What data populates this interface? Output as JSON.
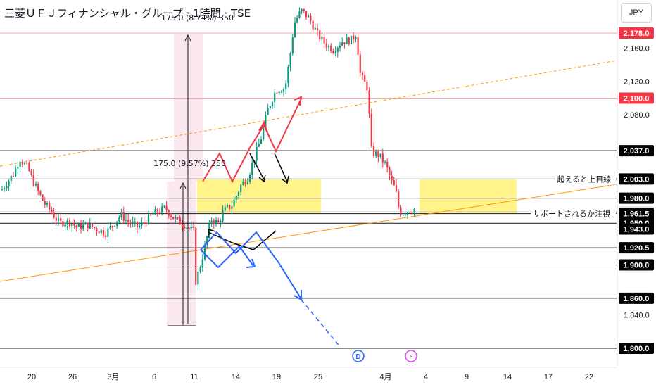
{
  "header": {
    "title": "三菱ＵＦＪフィナンシャル・グループ · 1時間 · TSE",
    "currency": "JPY"
  },
  "chart_data": {
    "type": "candlestick",
    "symbol": "三菱ＵＦＪフィナンシャル・グループ",
    "interval": "1時間",
    "exchange": "TSE",
    "currency": "JPY",
    "ylim": [
      1790,
      2205
    ],
    "y_ticks": [
      "2,160.0",
      "2,120.0",
      "2,080.0",
      "1,840.0"
    ],
    "x_ticks": [
      "20",
      "26",
      "3月",
      "6",
      "11",
      "14",
      "19",
      "25",
      "4月",
      "4",
      "9",
      "14",
      "17",
      "22"
    ],
    "horizontal_levels": [
      {
        "value": 2178.0,
        "label": "2,178.0",
        "color": "#f23645",
        "line": "#f7a8b0"
      },
      {
        "value": 2100.0,
        "label": "2,100.0",
        "color": "#f23645",
        "line": "#f7a8b0"
      },
      {
        "value": 2037.0,
        "label": "2,037.0",
        "color": "#000000",
        "line": "#131722"
      },
      {
        "value": 2003.0,
        "label": "2,003.0",
        "color": "#000000",
        "line": "#131722"
      },
      {
        "value": 1980.0,
        "label": "1,980.0",
        "color": "#000000",
        "line": "#131722"
      },
      {
        "value": 1963.5,
        "label": "1,963.5",
        "color": "#e0e3eb",
        "line": "#9598a1"
      },
      {
        "value": 1961.5,
        "label": "1,961.5",
        "color": "#000000",
        "line": "#131722"
      },
      {
        "value": 1950.0,
        "label": "1,950.0",
        "color": "#000000",
        "line": "#131722"
      },
      {
        "value": 1943.0,
        "label": "1,943.0",
        "color": "#000000",
        "line": "#131722"
      },
      {
        "value": 1920.5,
        "label": "1,920.5",
        "color": "#000000",
        "line": "#131722"
      },
      {
        "value": 1900.0,
        "label": "1,900.0",
        "color": "#000000",
        "line": "#131722"
      },
      {
        "value": 1860.0,
        "label": "1,860.0",
        "color": "#000000",
        "line": "#131722"
      },
      {
        "value": 1800.0,
        "label": "1,800.0",
        "color": "#000000",
        "line": "#131722"
      }
    ],
    "annotations": [
      {
        "text": "超えると上目線",
        "value": 2003.0
      },
      {
        "text": "サポートされるか注視",
        "value": 1961.5
      }
    ],
    "measure_labels": [
      "175.0 (9.57%) 350",
      "175.0 (8.74%) 350"
    ],
    "event_markers": [
      "D",
      "⚡"
    ],
    "colors": {
      "up": "#089981",
      "down": "#f23645",
      "bull_path": "#f23645",
      "bear_path": "#2962ff",
      "zone": "#fff176",
      "trend": "#ff9800",
      "measure": "#f8bbd0"
    }
  }
}
